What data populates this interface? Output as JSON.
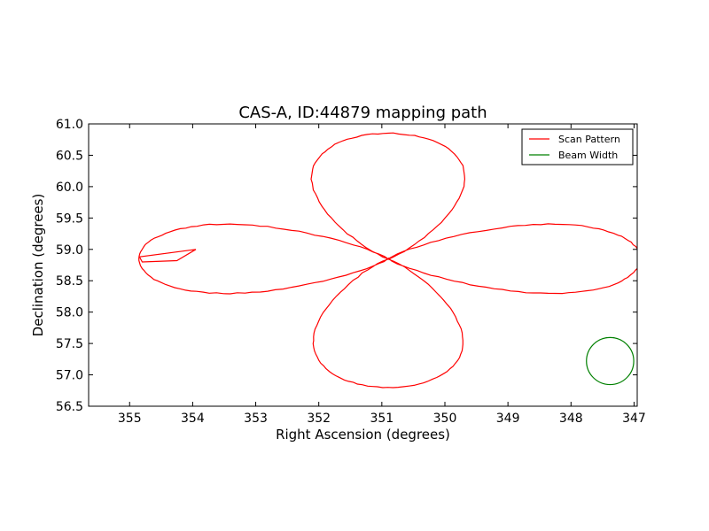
{
  "chart_data": {
    "type": "line",
    "title": "CAS-A, ID:44879 mapping path",
    "xlabel": "Right Ascension (degrees)",
    "ylabel": "Declination (degrees)",
    "xlim": [
      355.65,
      346.95
    ],
    "ylim": [
      56.5,
      61.0
    ],
    "x_inverted": true,
    "x_ticks": [
      "355",
      "354",
      "353",
      "352",
      "351",
      "350",
      "349",
      "348",
      "347"
    ],
    "x_tick_values": [
      355,
      354,
      353,
      352,
      351,
      350,
      349,
      348,
      347
    ],
    "y_ticks": [
      "56.5",
      "57.0",
      "57.5",
      "58.0",
      "58.5",
      "59.0",
      "59.5",
      "60.0",
      "60.5",
      "61.0"
    ],
    "y_tick_values": [
      56.5,
      57.0,
      57.5,
      58.0,
      58.5,
      59.0,
      59.5,
      60.0,
      60.5,
      61.0
    ],
    "grid": false,
    "legend_position": "top-right",
    "series": [
      {
        "name": "Scan Pattern",
        "color": "#ff0000",
        "shape": "four-lobed rose scan path centred near RA 350.9, Dec 58.85",
        "center": [
          350.9,
          58.85
        ],
        "lobes": [
          {
            "direction": "north",
            "extent_deg": 2.0,
            "half_width_deg": 1.28
          },
          {
            "direction": "south",
            "extent_deg": 2.05,
            "half_width_deg": 1.25
          },
          {
            "direction": "east",
            "extent_deg": 4.0,
            "half_width_deg": 0.58
          },
          {
            "direction": "west",
            "extent_deg": 3.95,
            "half_width_deg": 0.58
          }
        ],
        "spur_points": [
          [
            354.8,
            58.8
          ],
          [
            354.25,
            58.82
          ],
          [
            353.95,
            59.0
          ],
          [
            354.85,
            58.88
          ]
        ]
      },
      {
        "name": "Beam Width",
        "color": "#008000",
        "shape": "circle",
        "center": [
          347.38,
          57.22
        ],
        "radius_deg": 0.375
      }
    ]
  }
}
